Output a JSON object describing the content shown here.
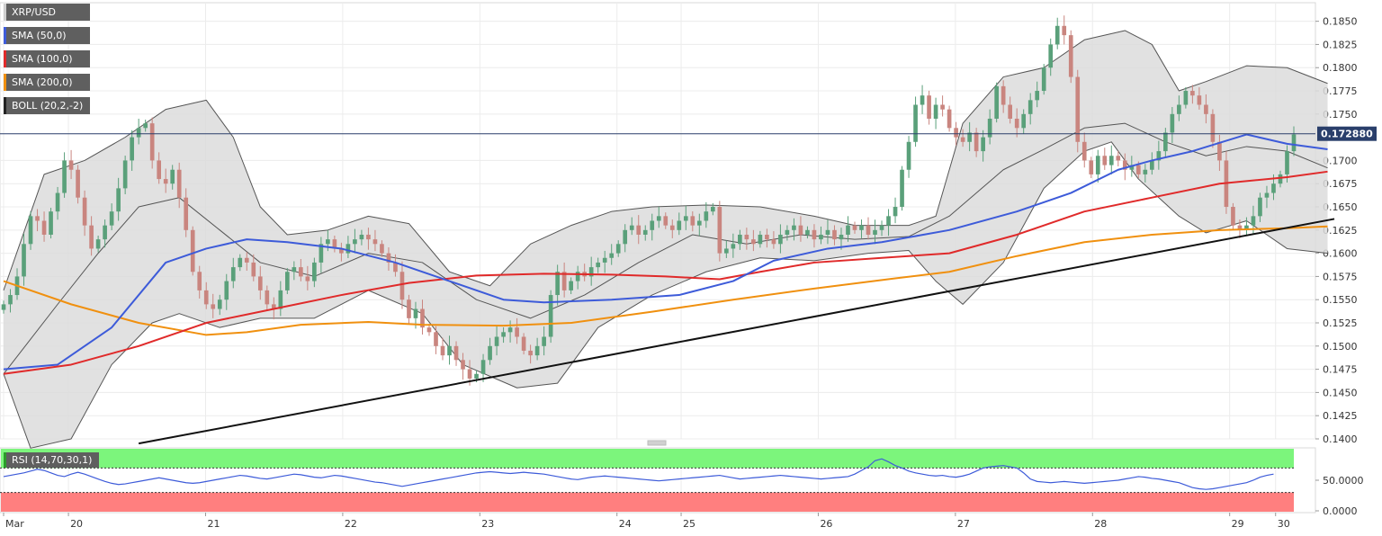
{
  "legend": {
    "pair": "XRP/USD",
    "sma50": "SMA (50,0)",
    "sma100": "SMA (100,0)",
    "sma200": "SMA (200,0)",
    "boll": "BOLL (20,2,-2)",
    "rsi": "RSI (14,70,30,1)"
  },
  "colors": {
    "bull": "#5aa07a",
    "bear": "#c9857f",
    "sma50": "#3d5bd9",
    "sma100": "#e02a2a",
    "sma200": "#f0900f",
    "boll": "#555555",
    "boll_fill": "#dcdcdc",
    "trend": "#111111",
    "price_line": "#2a3f6b",
    "rsi_line": "#3d5bd9",
    "rsi_over": "#7cf57c",
    "rsi_under": "#ff7f7f"
  },
  "chart_data": {
    "type": "candlestick",
    "current_price_label": "0.172880",
    "current_price": 0.17288,
    "ylim": [
      0.14,
      0.187
    ],
    "yticks": [
      "0.1850",
      "0.1825",
      "0.1800",
      "0.1775",
      "0.1750",
      "0.1700",
      "0.1675",
      "0.1650",
      "0.1625",
      "0.1600",
      "0.1575",
      "0.1550",
      "0.1525",
      "0.1500",
      "0.1475",
      "0.1450",
      "0.1425",
      "0.1400"
    ],
    "xticks": [
      {
        "label": "Mar",
        "t": 0
      },
      {
        "label": "20",
        "t": 9.6
      },
      {
        "label": "21",
        "t": 29.9
      },
      {
        "label": "22",
        "t": 50.2
      },
      {
        "label": "23",
        "t": 70.5
      },
      {
        "label": "24",
        "t": 90.8
      },
      {
        "label": "25",
        "t": 100.3
      },
      {
        "label": "26",
        "t": 120.6
      },
      {
        "label": "27",
        "t": 140.9
      },
      {
        "label": "28",
        "t": 161.2
      },
      {
        "label": "29",
        "t": 181.5
      },
      {
        "label": "30",
        "t": 188.3
      }
    ],
    "closes": [
      0.1545,
      0.1555,
      0.1575,
      0.161,
      0.164,
      0.1635,
      0.162,
      0.1645,
      0.1665,
      0.17,
      0.169,
      0.166,
      0.163,
      0.1605,
      0.1615,
      0.163,
      0.1645,
      0.167,
      0.17,
      0.1725,
      0.1735,
      0.174,
      0.17,
      0.168,
      0.1675,
      0.169,
      0.166,
      0.1625,
      0.158,
      0.156,
      0.1545,
      0.154,
      0.155,
      0.157,
      0.1585,
      0.1595,
      0.159,
      0.1575,
      0.156,
      0.1545,
      0.154,
      0.156,
      0.158,
      0.1585,
      0.1575,
      0.157,
      0.159,
      0.161,
      0.1615,
      0.1605,
      0.16,
      0.161,
      0.1615,
      0.162,
      0.1615,
      0.161,
      0.16,
      0.159,
      0.158,
      0.155,
      0.153,
      0.154,
      0.152,
      0.1515,
      0.15,
      0.149,
      0.15,
      0.1485,
      0.1475,
      0.1465,
      0.147,
      0.1485,
      0.15,
      0.151,
      0.1515,
      0.152,
      0.151,
      0.1495,
      0.149,
      0.15,
      0.151,
      0.1555,
      0.158,
      0.156,
      0.157,
      0.158,
      0.1575,
      0.1585,
      0.159,
      0.1595,
      0.16,
      0.161,
      0.1625,
      0.163,
      0.162,
      0.1625,
      0.1635,
      0.164,
      0.163,
      0.1625,
      0.1635,
      0.164,
      0.163,
      0.1635,
      0.1645,
      0.165,
      0.16,
      0.1605,
      0.161,
      0.162,
      0.1615,
      0.161,
      0.162,
      0.1615,
      0.161,
      0.162,
      0.1625,
      0.163,
      0.162,
      0.1625,
      0.1615,
      0.162,
      0.1625,
      0.1615,
      0.162,
      0.163,
      0.1625,
      0.163,
      0.162,
      0.1625,
      0.163,
      0.164,
      0.165,
      0.169,
      0.172,
      0.176,
      0.177,
      0.1745,
      0.176,
      0.1755,
      0.1735,
      0.1725,
      0.172,
      0.173,
      0.171,
      0.1725,
      0.1745,
      0.178,
      0.176,
      0.1745,
      0.1735,
      0.175,
      0.1765,
      0.1775,
      0.18,
      0.1825,
      0.1845,
      0.1835,
      0.179,
      0.172,
      0.17,
      0.1685,
      0.1705,
      0.1695,
      0.1705,
      0.17,
      0.169,
      0.1695,
      0.1685,
      0.169,
      0.17,
      0.171,
      0.173,
      0.175,
      0.176,
      0.1775,
      0.177,
      0.176,
      0.175,
      0.172,
      0.17,
      0.165,
      0.163,
      0.1625,
      0.163,
      0.164,
      0.166,
      0.1665,
      0.1675,
      0.1685,
      0.171,
      0.1728
    ],
    "sma50": [
      [
        0,
        0.1475
      ],
      [
        8,
        0.148
      ],
      [
        16,
        0.152
      ],
      [
        24,
        0.159
      ],
      [
        30,
        0.1605
      ],
      [
        36,
        0.1615
      ],
      [
        42,
        0.1612
      ],
      [
        50,
        0.1605
      ],
      [
        58,
        0.159
      ],
      [
        66,
        0.157
      ],
      [
        74,
        0.155
      ],
      [
        80,
        0.1547
      ],
      [
        90,
        0.155
      ],
      [
        100,
        0.1555
      ],
      [
        108,
        0.157
      ],
      [
        114,
        0.1592
      ],
      [
        122,
        0.1605
      ],
      [
        130,
        0.1612
      ],
      [
        140,
        0.1625
      ],
      [
        150,
        0.1645
      ],
      [
        158,
        0.1665
      ],
      [
        165,
        0.169
      ],
      [
        170,
        0.17
      ],
      [
        176,
        0.171
      ],
      [
        184,
        0.1728
      ],
      [
        190,
        0.1718
      ],
      [
        196,
        0.1712
      ]
    ],
    "sma100": [
      [
        0,
        0.147
      ],
      [
        10,
        0.148
      ],
      [
        20,
        0.15
      ],
      [
        30,
        0.1525
      ],
      [
        40,
        0.154
      ],
      [
        50,
        0.1555
      ],
      [
        60,
        0.1568
      ],
      [
        70,
        0.1576
      ],
      [
        80,
        0.1578
      ],
      [
        90,
        0.1577
      ],
      [
        98,
        0.1575
      ],
      [
        106,
        0.1572
      ],
      [
        112,
        0.158
      ],
      [
        120,
        0.159
      ],
      [
        130,
        0.1595
      ],
      [
        140,
        0.16
      ],
      [
        150,
        0.162
      ],
      [
        160,
        0.1645
      ],
      [
        170,
        0.166
      ],
      [
        180,
        0.1675
      ],
      [
        190,
        0.1682
      ],
      [
        196,
        0.1688
      ]
    ],
    "sma200": [
      [
        0,
        0.157
      ],
      [
        10,
        0.1545
      ],
      [
        20,
        0.1525
      ],
      [
        30,
        0.1512
      ],
      [
        36,
        0.1515
      ],
      [
        44,
        0.1523
      ],
      [
        54,
        0.1526
      ],
      [
        62,
        0.1523
      ],
      [
        74,
        0.1522
      ],
      [
        84,
        0.1525
      ],
      [
        96,
        0.1537
      ],
      [
        108,
        0.155
      ],
      [
        120,
        0.1562
      ],
      [
        132,
        0.1573
      ],
      [
        140,
        0.158
      ],
      [
        150,
        0.1597
      ],
      [
        160,
        0.1612
      ],
      [
        170,
        0.162
      ],
      [
        180,
        0.1625
      ],
      [
        190,
        0.1627
      ],
      [
        196,
        0.1629
      ]
    ],
    "boll_upper": [
      [
        0,
        0.156
      ],
      [
        6,
        0.1685
      ],
      [
        12,
        0.17
      ],
      [
        18,
        0.1725
      ],
      [
        24,
        0.1755
      ],
      [
        30,
        0.1765
      ],
      [
        34,
        0.1725
      ],
      [
        38,
        0.165
      ],
      [
        42,
        0.162
      ],
      [
        48,
        0.1625
      ],
      [
        54,
        0.164
      ],
      [
        60,
        0.1632
      ],
      [
        66,
        0.158
      ],
      [
        72,
        0.1565
      ],
      [
        78,
        0.161
      ],
      [
        84,
        0.163
      ],
      [
        90,
        0.1645
      ],
      [
        96,
        0.165
      ],
      [
        104,
        0.1652
      ],
      [
        112,
        0.165
      ],
      [
        120,
        0.164
      ],
      [
        126,
        0.163
      ],
      [
        134,
        0.163
      ],
      [
        138,
        0.164
      ],
      [
        142,
        0.174
      ],
      [
        148,
        0.179
      ],
      [
        154,
        0.18
      ],
      [
        160,
        0.183
      ],
      [
        166,
        0.184
      ],
      [
        170,
        0.1825
      ],
      [
        174,
        0.1775
      ],
      [
        178,
        0.1785
      ],
      [
        184,
        0.1802
      ],
      [
        190,
        0.18
      ],
      [
        196,
        0.1783
      ]
    ],
    "boll_middle": [
      [
        0,
        0.147
      ],
      [
        8,
        0.1545
      ],
      [
        14,
        0.16
      ],
      [
        20,
        0.165
      ],
      [
        26,
        0.166
      ],
      [
        32,
        0.1625
      ],
      [
        38,
        0.159
      ],
      [
        46,
        0.1575
      ],
      [
        54,
        0.16
      ],
      [
        62,
        0.159
      ],
      [
        70,
        0.155
      ],
      [
        78,
        0.153
      ],
      [
        86,
        0.1555
      ],
      [
        94,
        0.159
      ],
      [
        102,
        0.162
      ],
      [
        110,
        0.161
      ],
      [
        118,
        0.162
      ],
      [
        126,
        0.1615
      ],
      [
        134,
        0.1618
      ],
      [
        140,
        0.164
      ],
      [
        148,
        0.169
      ],
      [
        154,
        0.1712
      ],
      [
        160,
        0.1735
      ],
      [
        166,
        0.174
      ],
      [
        172,
        0.172
      ],
      [
        178,
        0.1705
      ],
      [
        184,
        0.1715
      ],
      [
        190,
        0.171
      ],
      [
        196,
        0.1692
      ]
    ],
    "boll_lower": [
      [
        0,
        0.147
      ],
      [
        4,
        0.139
      ],
      [
        10,
        0.14
      ],
      [
        16,
        0.148
      ],
      [
        22,
        0.1525
      ],
      [
        26,
        0.1535
      ],
      [
        32,
        0.152
      ],
      [
        38,
        0.153
      ],
      [
        46,
        0.153
      ],
      [
        54,
        0.156
      ],
      [
        62,
        0.1535
      ],
      [
        68,
        0.148
      ],
      [
        76,
        0.1455
      ],
      [
        82,
        0.146
      ],
      [
        88,
        0.152
      ],
      [
        96,
        0.1555
      ],
      [
        104,
        0.158
      ],
      [
        112,
        0.1595
      ],
      [
        120,
        0.1592
      ],
      [
        128,
        0.16
      ],
      [
        134,
        0.1603
      ],
      [
        138,
        0.157
      ],
      [
        142,
        0.1545
      ],
      [
        148,
        0.159
      ],
      [
        154,
        0.167
      ],
      [
        160,
        0.171
      ],
      [
        164,
        0.172
      ],
      [
        168,
        0.168
      ],
      [
        174,
        0.164
      ],
      [
        178,
        0.1622
      ],
      [
        184,
        0.1635
      ],
      [
        190,
        0.1605
      ],
      [
        196,
        0.16
      ]
    ],
    "trendline": [
      [
        20,
        0.1395
      ],
      [
        197,
        0.1637
      ]
    ],
    "rsi": {
      "yticks": [
        {
          "label": "50.0000",
          "v": 50
        },
        {
          "label": "0.0000",
          "v": 0
        }
      ],
      "over": 70,
      "under": 30,
      "values": [
        56,
        58,
        60,
        62,
        65,
        68,
        66,
        62,
        58,
        56,
        60,
        63,
        60,
        56,
        52,
        48,
        45,
        43,
        44,
        46,
        48,
        50,
        52,
        54,
        52,
        50,
        48,
        46,
        45,
        46,
        48,
        50,
        52,
        54,
        56,
        58,
        57,
        55,
        53,
        52,
        54,
        56,
        58,
        60,
        59,
        57,
        55,
        54,
        56,
        58,
        57,
        55,
        53,
        51,
        49,
        47,
        46,
        44,
        42,
        40,
        42,
        44,
        46,
        48,
        50,
        52,
        54,
        56,
        58,
        60,
        62,
        63,
        64,
        63,
        62,
        61,
        62,
        63,
        62,
        61,
        60,
        58,
        56,
        54,
        52,
        51,
        53,
        55,
        56,
        57,
        56,
        55,
        54,
        53,
        52,
        51,
        50,
        49,
        50,
        51,
        52,
        53,
        54,
        55,
        56,
        57,
        58,
        56,
        54,
        52,
        53,
        54,
        55,
        56,
        57,
        58,
        57,
        56,
        55,
        54,
        53,
        52,
        53,
        54,
        55,
        56,
        60,
        66,
        72,
        82,
        85,
        80,
        74,
        70,
        65,
        62,
        60,
        58,
        57,
        58,
        56,
        55,
        57,
        60,
        65,
        70,
        72,
        73,
        74,
        72,
        70,
        62,
        52,
        48,
        47,
        46,
        47,
        48,
        47,
        46,
        45,
        46,
        47,
        48,
        49,
        50,
        52,
        54,
        56,
        55,
        53,
        52,
        50,
        48,
        46,
        42,
        38,
        36,
        35,
        36,
        38,
        40,
        42,
        44,
        46,
        50,
        55,
        58,
        60
      ]
    }
  }
}
